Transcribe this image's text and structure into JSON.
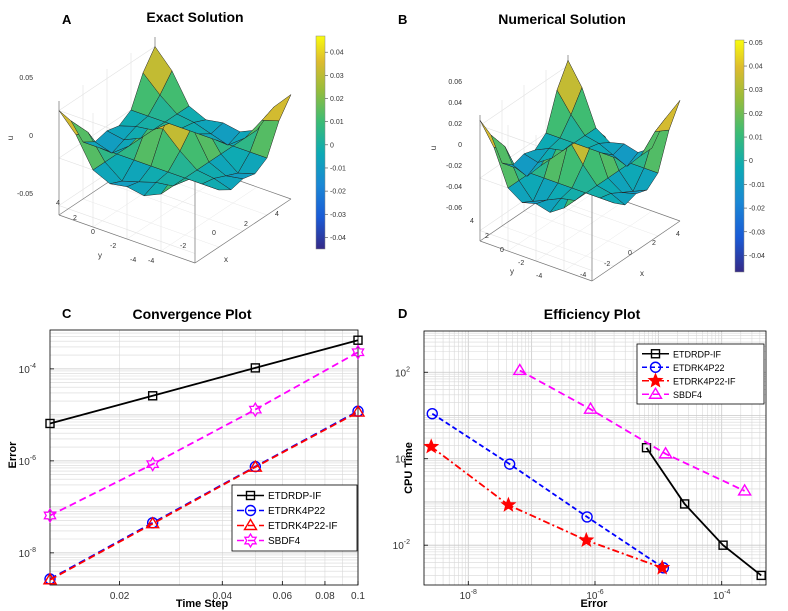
{
  "chart_data": [
    {
      "panel": "A",
      "type": "surface",
      "title": "Exact Solution",
      "xlabel": "x",
      "ylabel": "y",
      "zlabel": "u",
      "z_ticks": [
        "0.05",
        "0",
        "-0.05"
      ],
      "x_ticks": [
        "-4",
        "-2",
        "0",
        "2",
        "4"
      ],
      "y_ticks": [
        "4",
        "2",
        "0",
        "-2",
        "-4"
      ],
      "colorbar_ticks": [
        "0.04",
        "0.03",
        "0.02",
        "0.01",
        "0",
        "-0.01",
        "-0.02",
        "-0.03",
        "-0.04"
      ],
      "colorbar_range": [
        -0.045,
        0.047
      ]
    },
    {
      "panel": "B",
      "type": "surface",
      "title": "Numerical Solution",
      "xlabel": "x",
      "ylabel": "y",
      "zlabel": "u",
      "z_ticks": [
        "0.06",
        "0.04",
        "0.02",
        "0",
        "-0.02",
        "-0.04",
        "-0.06"
      ],
      "x_ticks": [
        "-4",
        "-2",
        "0",
        "2",
        "4"
      ],
      "y_ticks": [
        "4",
        "2",
        "0",
        "-2",
        "-4"
      ],
      "colorbar_ticks": [
        "0.05",
        "0.04",
        "0.03",
        "0.02",
        "0.01",
        "0",
        "-0.01",
        "-0.02",
        "-0.03",
        "-0.04"
      ],
      "colorbar_range": [
        -0.047,
        0.051
      ]
    },
    {
      "panel": "C",
      "type": "line",
      "title": "Convergence Plot",
      "xlabel": "Time Step",
      "ylabel": "Error",
      "xscale": "log",
      "yscale": "log",
      "xlim": [
        0.0125,
        0.1
      ],
      "ylim": [
        2e-09,
        0.0007
      ],
      "x_ticks": [
        {
          "v": 0.02,
          "label": "0.02"
        },
        {
          "v": 0.04,
          "label": "0.04"
        },
        {
          "v": 0.06,
          "label": "0.06"
        },
        {
          "v": 0.08,
          "label": "0.08"
        },
        {
          "v": 0.1,
          "label": "0.1"
        }
      ],
      "y_ticks": [
        {
          "v": 1e-08,
          "base": "10",
          "exp": "-8"
        },
        {
          "v": 1e-06,
          "base": "10",
          "exp": "-6"
        },
        {
          "v": 0.0001,
          "base": "10",
          "exp": "-4"
        }
      ],
      "legend": "bottom-right",
      "series": [
        {
          "name": "ETDRDP-IF",
          "color": "#000000",
          "marker": "square",
          "dash": "",
          "x": [
            0.0125,
            0.025,
            0.05,
            0.1
          ],
          "y": [
            6.5e-06,
            2.6e-05,
            0.000105,
            0.00042
          ]
        },
        {
          "name": "ETDRK4P22",
          "color": "#0000ff",
          "marker": "circle",
          "dash": "7,4",
          "x": [
            0.0125,
            0.025,
            0.05,
            0.1
          ],
          "y": [
            2.7e-09,
            4.5e-08,
            7.5e-07,
            1.2e-05
          ]
        },
        {
          "name": "ETDRK4P22-IF",
          "color": "#ff0000",
          "marker": "triangle",
          "dash": "7,4",
          "x": [
            0.0125,
            0.025,
            0.05,
            0.1
          ],
          "y": [
            2.6e-09,
            4.3e-08,
            7.3e-07,
            1.15e-05
          ]
        },
        {
          "name": "SBDF4",
          "color": "#ff00ff",
          "marker": "hexagram",
          "dash": "7,4",
          "x": [
            0.0125,
            0.025,
            0.05,
            0.1
          ],
          "y": [
            6.5e-08,
            8.5e-07,
            1.3e-05,
            0.00023
          ]
        }
      ]
    },
    {
      "panel": "D",
      "type": "line",
      "title": "Efficiency Plot",
      "xlabel": "Error",
      "ylabel": "CPU Time",
      "xscale": "log",
      "yscale": "log",
      "xlim": [
        2e-09,
        0.0005
      ],
      "ylim": [
        0.0012,
        900
      ],
      "x_ticks": [
        {
          "v": 1e-08,
          "base": "10",
          "exp": "-8"
        },
        {
          "v": 1e-06,
          "base": "10",
          "exp": "-6"
        },
        {
          "v": 0.0001,
          "base": "10",
          "exp": "-4"
        }
      ],
      "y_ticks": [
        {
          "v": 0.01,
          "base": "10",
          "exp": "-2"
        },
        {
          "v": 1,
          "base": "10",
          "exp": "0"
        },
        {
          "v": 100,
          "base": "10",
          "exp": "2"
        }
      ],
      "legend": "top-right",
      "series": [
        {
          "name": "ETDRDP-IF",
          "color": "#000000",
          "marker": "square",
          "dash": "",
          "x": [
            6.5e-06,
            2.6e-05,
            0.000105,
            0.00042
          ],
          "y": [
            1.8,
            0.09,
            0.01,
            0.002
          ]
        },
        {
          "name": "ETDRK4P22",
          "color": "#0000ff",
          "marker": "circle",
          "dash": "5,3",
          "x": [
            2.7e-09,
            4.5e-08,
            7.5e-07,
            1.2e-05
          ],
          "y": [
            11,
            0.75,
            0.045,
            0.003
          ]
        },
        {
          "name": "ETDRK4P22-IF",
          "color": "#ff0000",
          "marker": "star",
          "dash": "7,3,2,3",
          "x": [
            2.6e-09,
            4.3e-08,
            7.3e-07,
            1.15e-05
          ],
          "y": [
            1.9,
            0.085,
            0.013,
            0.003
          ]
        },
        {
          "name": "SBDF4",
          "color": "#ff00ff",
          "marker": "triangle",
          "dash": "7,4",
          "x": [
            6.5e-08,
            8.5e-07,
            1.3e-05,
            0.00023
          ],
          "y": [
            110,
            14,
            1.3,
            0.18
          ]
        }
      ]
    }
  ]
}
